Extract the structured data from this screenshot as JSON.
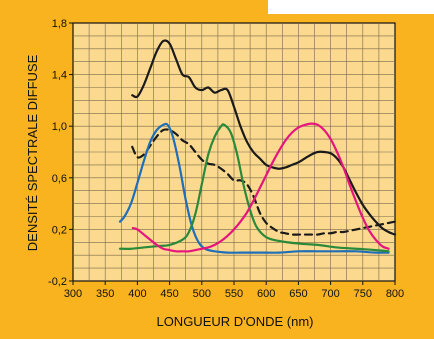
{
  "chart_data": {
    "type": "line",
    "xlabel": "LONGUEUR D'ONDE (nm)",
    "ylabel": "DENSITÉ SPECTRALE DIFFUSE",
    "xlim": [
      300,
      800
    ],
    "ylim": [
      -0.2,
      1.8
    ],
    "xticks": [
      300,
      350,
      400,
      450,
      500,
      550,
      600,
      650,
      700,
      750,
      800
    ],
    "yticks": [
      -0.2,
      0.2,
      0.6,
      1.0,
      1.4,
      1.8
    ],
    "ytick_labels": [
      "-0,2",
      "0,2",
      "0,6",
      "1,0",
      "1,4",
      "1,8"
    ],
    "grid": true,
    "series": [
      {
        "color": "#1a1a1a",
        "style": "solid",
        "x": [
          392,
          400,
          410,
          420,
          430,
          440,
          450,
          460,
          470,
          480,
          490,
          500,
          510,
          520,
          530,
          540,
          550,
          560,
          570,
          580,
          590,
          600,
          610,
          620,
          630,
          640,
          650,
          660,
          670,
          680,
          690,
          700,
          710,
          720,
          730,
          740,
          750,
          760,
          770,
          780,
          790,
          800
        ],
        "y": [
          1.24,
          1.23,
          1.32,
          1.45,
          1.58,
          1.66,
          1.64,
          1.52,
          1.4,
          1.38,
          1.3,
          1.28,
          1.3,
          1.26,
          1.28,
          1.28,
          1.15,
          1.0,
          0.88,
          0.8,
          0.75,
          0.7,
          0.68,
          0.67,
          0.68,
          0.7,
          0.72,
          0.75,
          0.78,
          0.8,
          0.8,
          0.79,
          0.75,
          0.68,
          0.58,
          0.48,
          0.39,
          0.32,
          0.26,
          0.21,
          0.18,
          0.16
        ]
      },
      {
        "color": "#1a1a1a",
        "style": "dashed",
        "x": [
          392,
          400,
          410,
          420,
          430,
          440,
          450,
          460,
          470,
          480,
          490,
          500,
          510,
          520,
          530,
          540,
          550,
          560,
          570,
          580,
          590,
          600,
          610,
          620,
          630,
          640,
          650,
          660,
          670,
          680,
          690,
          700,
          710,
          720,
          730,
          740,
          750,
          760,
          770,
          780,
          790,
          800
        ],
        "y": [
          0.84,
          0.76,
          0.78,
          0.85,
          0.92,
          0.97,
          0.97,
          0.94,
          0.89,
          0.86,
          0.8,
          0.74,
          0.71,
          0.7,
          0.67,
          0.63,
          0.58,
          0.58,
          0.55,
          0.46,
          0.33,
          0.25,
          0.21,
          0.18,
          0.17,
          0.16,
          0.16,
          0.16,
          0.16,
          0.16,
          0.17,
          0.17,
          0.18,
          0.18,
          0.19,
          0.2,
          0.21,
          0.22,
          0.23,
          0.24,
          0.25,
          0.26
        ]
      },
      {
        "color": "#1f6fb8",
        "style": "solid",
        "x": [
          373,
          380,
          390,
          400,
          410,
          420,
          430,
          440,
          447,
          455,
          465,
          475,
          485,
          495,
          505,
          520,
          540,
          560,
          580,
          600,
          620,
          650,
          680,
          710,
          740,
          770,
          790
        ],
        "y": [
          0.26,
          0.3,
          0.4,
          0.56,
          0.73,
          0.88,
          0.97,
          1.01,
          1.01,
          0.92,
          0.7,
          0.43,
          0.22,
          0.1,
          0.05,
          0.03,
          0.02,
          0.02,
          0.02,
          0.02,
          0.02,
          0.03,
          0.03,
          0.03,
          0.03,
          0.02,
          0.02
        ]
      },
      {
        "color": "#2a8a3a",
        "style": "solid",
        "x": [
          373,
          390,
          410,
          430,
          450,
          470,
          480,
          490,
          500,
          510,
          520,
          530,
          535,
          545,
          555,
          565,
          575,
          585,
          600,
          620,
          650,
          680,
          710,
          740,
          770,
          790
        ],
        "y": [
          0.05,
          0.05,
          0.06,
          0.07,
          0.08,
          0.12,
          0.18,
          0.32,
          0.55,
          0.78,
          0.92,
          1.0,
          1.01,
          0.95,
          0.78,
          0.54,
          0.35,
          0.22,
          0.14,
          0.11,
          0.09,
          0.08,
          0.06,
          0.05,
          0.04,
          0.03
        ]
      },
      {
        "color": "#e6157e",
        "style": "solid",
        "x": [
          393,
          400,
          410,
          420,
          430,
          440,
          450,
          460,
          470,
          480,
          490,
          500,
          510,
          520,
          530,
          540,
          550,
          560,
          570,
          580,
          590,
          600,
          610,
          620,
          630,
          640,
          650,
          660,
          670,
          680,
          690,
          700,
          710,
          720,
          730,
          740,
          750,
          760,
          770,
          780,
          790
        ],
        "y": [
          0.21,
          0.2,
          0.16,
          0.12,
          0.08,
          0.05,
          0.04,
          0.03,
          0.03,
          0.03,
          0.04,
          0.05,
          0.06,
          0.08,
          0.11,
          0.15,
          0.2,
          0.26,
          0.33,
          0.42,
          0.52,
          0.62,
          0.72,
          0.81,
          0.89,
          0.95,
          0.99,
          1.01,
          1.02,
          1.01,
          0.97,
          0.9,
          0.8,
          0.68,
          0.54,
          0.41,
          0.29,
          0.19,
          0.12,
          0.07,
          0.05
        ]
      }
    ]
  }
}
